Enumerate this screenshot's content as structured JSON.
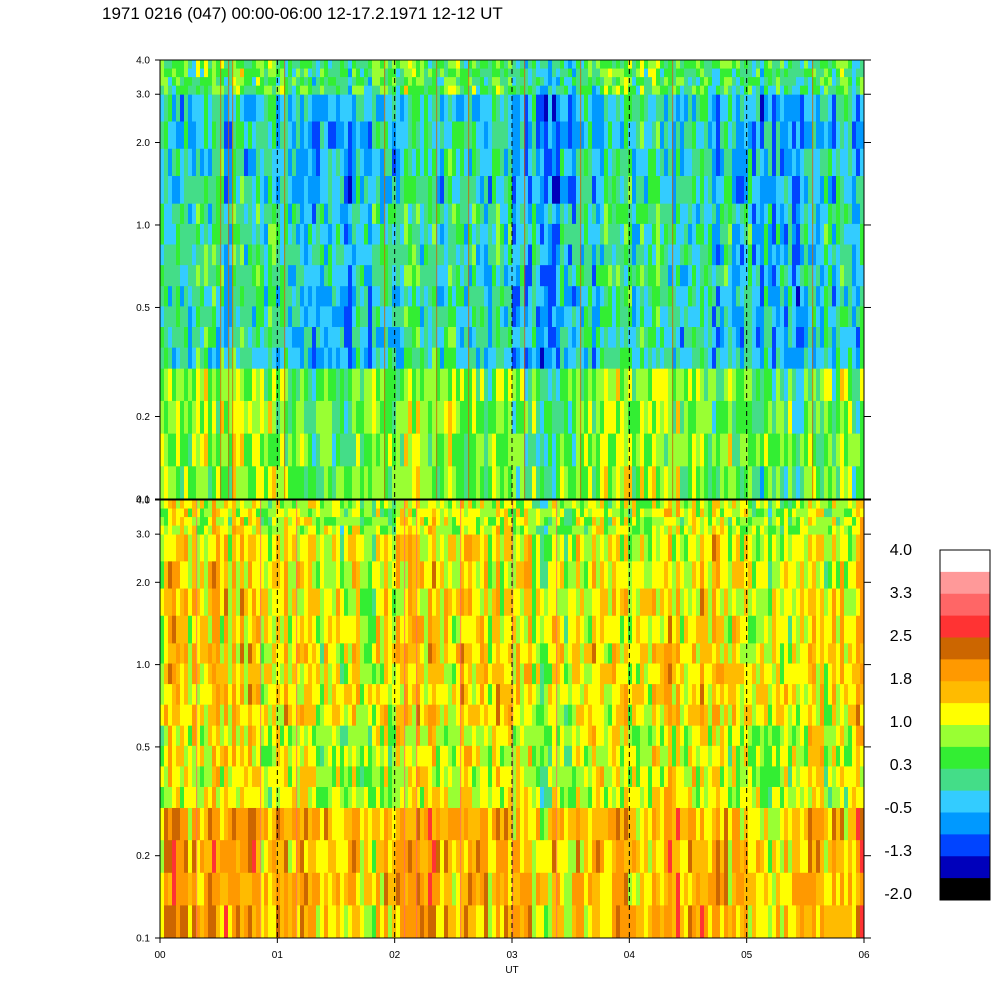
{
  "title": "1971 0216 (047) 00:00-06:00 12-17.2.1971  12-12 UT",
  "chart_data": {
    "type": "heatmap",
    "xlabel": "UT",
    "x_ticks": [
      "00",
      "01",
      "02",
      "03",
      "04",
      "05",
      "06"
    ],
    "x_range": [
      0,
      6
    ],
    "y_scale": "log",
    "y_range": [
      0.1,
      4.0
    ],
    "y_ticks": [
      {
        "value": 0.1,
        "label": "0.1"
      },
      {
        "value": 0.2,
        "label": "0.2"
      },
      {
        "value": 0.5,
        "label": "0.5"
      },
      {
        "value": 1.0,
        "label": "1.0"
      },
      {
        "value": 2.0,
        "label": "2.0"
      },
      {
        "value": 3.0,
        "label": "3.0"
      },
      {
        "value": 4.0,
        "label": "4.0"
      }
    ],
    "panels": [
      {
        "name": "upper",
        "approx_levels": [
          {
            "y_from": 0.1,
            "y_to": 0.3,
            "level": 0.6
          },
          {
            "y_from": 0.3,
            "y_to": 0.6,
            "level": -0.2
          },
          {
            "y_from": 0.6,
            "y_to": 1.2,
            "level": -0.1
          },
          {
            "y_from": 1.2,
            "y_to": 3.0,
            "level": -0.3
          },
          {
            "y_from": 3.0,
            "y_to": 4.0,
            "level": 0.3
          }
        ]
      },
      {
        "name": "lower",
        "approx_levels": [
          {
            "y_from": 0.1,
            "y_to": 0.3,
            "level": 1.6
          },
          {
            "y_from": 0.3,
            "y_to": 0.6,
            "level": 1.0
          },
          {
            "y_from": 0.6,
            "y_to": 1.2,
            "level": 1.3
          },
          {
            "y_from": 1.2,
            "y_to": 3.0,
            "level": 1.2
          },
          {
            "y_from": 3.0,
            "y_to": 4.0,
            "level": 0.9
          }
        ]
      }
    ],
    "grid": "vertical dashed lines at each hour",
    "colorbar": {
      "labels": [
        "4.0",
        "3.3",
        "2.5",
        "1.8",
        "1.0",
        "0.3",
        "-0.5",
        "-1.3",
        "-2.0"
      ],
      "colors": [
        "#ffffff",
        "#ff9999",
        "#ff6666",
        "#ff3333",
        "#cc6600",
        "#ff9900",
        "#ffbb00",
        "#ffff00",
        "#99ff33",
        "#33ee33",
        "#44dd88",
        "#33ccff",
        "#0099ff",
        "#0044ff",
        "#0000bb",
        "#000000"
      ]
    }
  }
}
